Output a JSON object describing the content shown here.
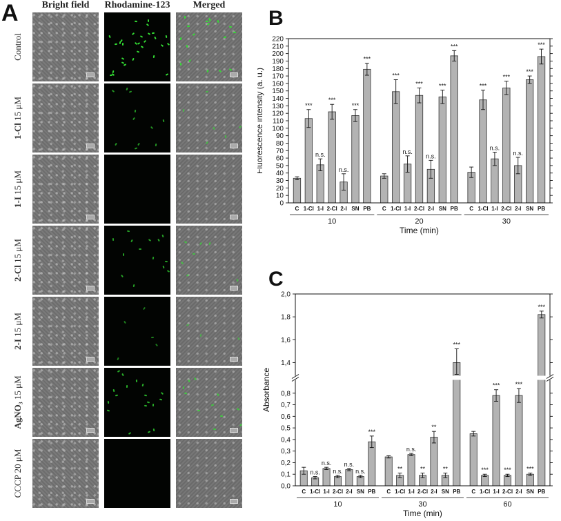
{
  "panel_a": {
    "letter": "A",
    "columns": [
      "Bright field",
      "Rhodamine-123",
      "Merged"
    ],
    "rows": [
      {
        "bold": "",
        "rest": "Control",
        "green_level": 1.0
      },
      {
        "bold": "1-Cl",
        "rest": " 15 μM",
        "green_level": 0.35
      },
      {
        "bold": "1-I",
        "rest": " 15 μM",
        "green_level": 0.0
      },
      {
        "bold": "2-Cl",
        "rest": " 15 μM",
        "green_level": 0.45
      },
      {
        "bold": "2-I",
        "rest": " 15 μM",
        "green_level": 0.15
      },
      {
        "bold": "AgNO₃",
        "rest": " 15 μM",
        "green_level": 0.6
      },
      {
        "bold": "",
        "rest": "CCCP 20 μM",
        "green_level": 0.0
      }
    ]
  },
  "chart_data": [
    {
      "panel": "B",
      "type": "bar",
      "ylabel": "Fluorescence intensity (a. u.)",
      "xlabel": "Time (min)",
      "ylim": [
        0,
        220
      ],
      "yticks": [
        0,
        10,
        20,
        30,
        40,
        50,
        60,
        70,
        80,
        90,
        100,
        110,
        120,
        130,
        140,
        150,
        160,
        170,
        180,
        190,
        200,
        210,
        220
      ],
      "groups": [
        "10",
        "20",
        "30"
      ],
      "categories": [
        "C",
        "1-Cl",
        "1-I",
        "2-Cl",
        "2-I",
        "SN",
        "PB"
      ],
      "bar_color": "#b3b3b3",
      "values": [
        [
          33,
          113,
          51,
          122,
          28,
          117,
          179
        ],
        [
          36,
          149,
          52,
          144,
          45,
          142,
          197
        ],
        [
          41,
          138,
          59,
          154,
          50,
          165,
          196
        ]
      ],
      "errors": [
        [
          2,
          12,
          8,
          10,
          11,
          8,
          8
        ],
        [
          3,
          16,
          11,
          10,
          12,
          9,
          7
        ],
        [
          7,
          13,
          9,
          9,
          11,
          5,
          10
        ]
      ],
      "significance": [
        [
          "",
          "***",
          "n.s.",
          "***",
          "n.s.",
          "***",
          "***"
        ],
        [
          "",
          "***",
          "n.s.",
          "***",
          "n.s.",
          "***",
          "***"
        ],
        [
          "",
          "***",
          "n.s.",
          "***",
          "n.s.",
          "***",
          "***"
        ]
      ]
    },
    {
      "panel": "C",
      "type": "bar",
      "ylabel": "Absorbance",
      "xlabel": "Time (min)",
      "ylim": [
        0,
        2.0
      ],
      "axis_break": [
        0.9,
        1.3
      ],
      "yticks": [
        "0,0",
        "0,1",
        "0,2",
        "0,3",
        "0,4",
        "0,5",
        "0,6",
        "0,7",
        "0,8",
        "1,4",
        "1,6",
        "1,8",
        "2,0"
      ],
      "groups": [
        "10",
        "30",
        "60"
      ],
      "categories": [
        "C",
        "1-Cl",
        "1-I",
        "2-Cl",
        "2-I",
        "SN",
        "PB"
      ],
      "bar_color": "#b3b3b3",
      "values": [
        [
          0.13,
          0.07,
          0.15,
          0.08,
          0.14,
          0.08,
          0.38
        ],
        [
          0.25,
          0.09,
          0.27,
          0.09,
          0.42,
          0.09,
          1.4
        ],
        [
          0.45,
          0.09,
          0.78,
          0.09,
          0.78,
          0.1,
          1.82
        ]
      ],
      "errors": [
        [
          0.03,
          0.01,
          0.01,
          0.01,
          0.01,
          0.01,
          0.05
        ],
        [
          0.01,
          0.02,
          0.01,
          0.02,
          0.05,
          0.02,
          0.12
        ],
        [
          0.02,
          0.01,
          0.05,
          0.01,
          0.06,
          0.01,
          0.03
        ]
      ],
      "significance": [
        [
          "",
          "n.s.",
          "n.s.",
          "n.s.",
          "n.s.",
          "n.s.",
          "***"
        ],
        [
          "",
          "**",
          "n.s.",
          "**",
          "**",
          "**",
          "***"
        ],
        [
          "",
          "***",
          "***",
          "***",
          "***",
          "***",
          "***"
        ]
      ]
    }
  ]
}
